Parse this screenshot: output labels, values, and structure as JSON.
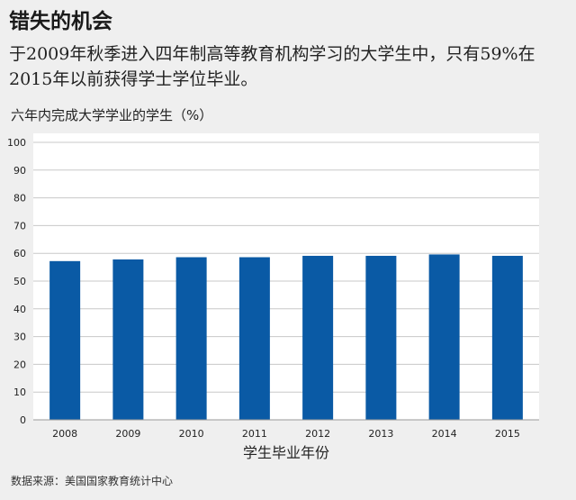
{
  "title": "错失的机会",
  "subtitle": "于2009年秋季进入四年制高等教育机构学习的大学生中，只有59%在2015年以前获得学士学位毕业。",
  "source": "数据来源：美国国家教育统计中心",
  "chart_data": {
    "type": "bar",
    "title": "错失的机会",
    "ylabel": "六年内完成大学学业的学生（%）",
    "xlabel": "学生毕业年份",
    "categories": [
      "2008",
      "2009",
      "2010",
      "2011",
      "2012",
      "2013",
      "2014",
      "2015"
    ],
    "values": [
      57.2,
      57.8,
      58.6,
      58.6,
      59.1,
      59.1,
      59.6,
      59.1
    ],
    "ylim": [
      0,
      100
    ],
    "yticks": [
      0,
      10,
      20,
      30,
      40,
      50,
      60,
      70,
      80,
      90,
      100
    ],
    "grid": true,
    "bar_color": "#0a5aa5",
    "plot_background": "#ffffff",
    "page_background": "#efefef"
  }
}
